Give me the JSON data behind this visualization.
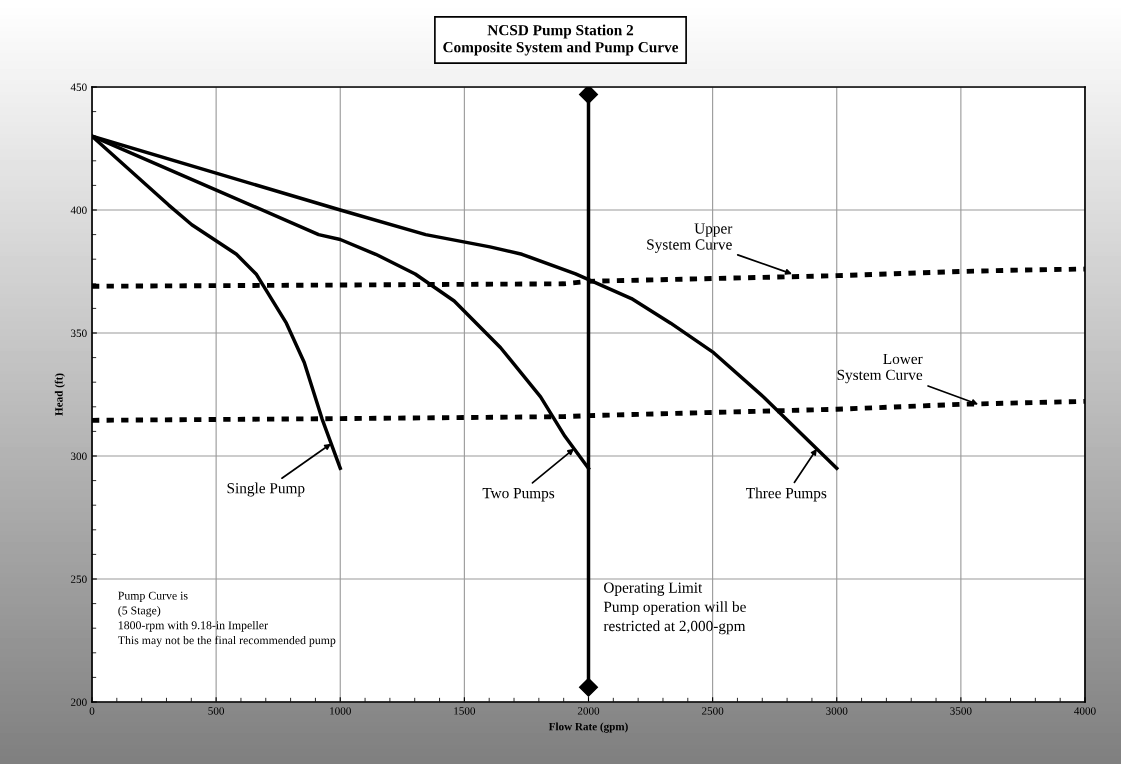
{
  "chart_data": {
    "type": "line",
    "title": "NCSD Pump Station 2",
    "subtitle": "Composite System and Pump Curve",
    "xlabel": "Flow Rate (gpm)",
    "ylabel": "Head (ft)",
    "xlim": [
      0,
      4000
    ],
    "xticks": [
      0,
      500,
      1000,
      1500,
      2000,
      2500,
      3000,
      3500,
      4000
    ],
    "ylim": [
      200,
      450
    ],
    "yticks": [
      200,
      250,
      300,
      350,
      400,
      450
    ],
    "grid": true,
    "marker": "none",
    "series": [
      {
        "color": "#000000",
        "line_style": "solid",
        "x": [
          0,
          309,
          402,
          582,
          661,
          783,
          855,
          927,
          1000
        ],
        "values": [
          430,
          402,
          394,
          382,
          374,
          354,
          338,
          315,
          295
        ]
      },
      {
        "color": "#000000",
        "line_style": "solid",
        "x": [
          0,
          503,
          913,
          1000,
          1143,
          1302,
          1459,
          1646,
          1807,
          1905,
          2000
        ],
        "values": [
          430,
          408,
          390,
          388,
          382,
          374,
          363,
          344,
          324,
          308,
          295
        ]
      },
      {
        "color": "#000000",
        "line_style": "solid",
        "x": [
          0,
          1000,
          1344,
          1603,
          1732,
          1948,
          2173,
          2331,
          2504,
          2705,
          3000
        ],
        "values": [
          430,
          400,
          390,
          385,
          382,
          374,
          364,
          354,
          342,
          324,
          295
        ]
      },
      {
        "color": "#000000",
        "line_style": "dotted",
        "x": [
          0,
          1000,
          1900,
          2000,
          3000,
          3500,
          3700,
          4000
        ],
        "values": [
          369,
          369.5,
          370,
          371,
          373.3,
          375,
          375.5,
          376
        ]
      },
      {
        "color": "#000000",
        "line_style": "dotted",
        "x": [
          0,
          1000,
          1900,
          2000,
          3000,
          3500,
          3700,
          4000
        ],
        "values": [
          314.5,
          315.2,
          316,
          316.4,
          319,
          321,
          321.5,
          322.2
        ]
      },
      {
        "color": "#000000",
        "line_style": "solid",
        "marker": "diamond",
        "x": [
          2000,
          2000
        ],
        "values": [
          206,
          447
        ]
      }
    ],
    "annotations": [
      {
        "text": "Single Pump",
        "x": 963,
        "y": 305
      },
      {
        "text": "Two Pumps",
        "x": 1942,
        "y": 303
      },
      {
        "text": "Three Pumps",
        "x": 2920,
        "y": 303
      },
      {
        "text": "Upper\nSystem Curve",
        "x": 2820,
        "y": 374
      },
      {
        "text": "Lower\nSystem Curve",
        "x": 3570,
        "y": 321
      },
      "Operating Limit\nPump operation will be\nrestricted at 2,000-gpm",
      "Pump Curve is\n(5 Stage)\n1800-rpm with 9.18-in Impeller\nThis may not be the final recommended pump"
    ]
  }
}
